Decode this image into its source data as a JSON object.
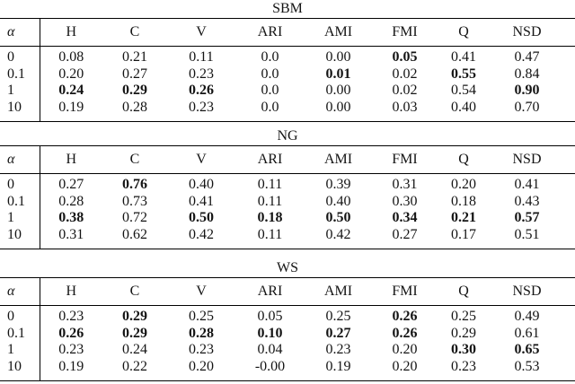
{
  "colors": {
    "background": "#ffffff",
    "text": "#141414",
    "rule": "#000000"
  },
  "columns": [
    "α",
    "H",
    "C",
    "V",
    "ARI",
    "AMI",
    "FMI",
    "Q",
    "NSD"
  ],
  "tables": [
    {
      "title": "SBM",
      "rows": [
        {
          "alpha": "0",
          "values": [
            "0.08",
            "0.21",
            "0.11",
            "0.0",
            "0.00",
            "0.05",
            "0.41",
            "0.47"
          ],
          "bold": [
            false,
            false,
            false,
            false,
            false,
            true,
            false,
            false
          ]
        },
        {
          "alpha": "0.1",
          "values": [
            "0.20",
            "0.27",
            "0.23",
            "0.0",
            "0.01",
            "0.02",
            "0.55",
            "0.84"
          ],
          "bold": [
            false,
            false,
            false,
            false,
            true,
            false,
            true,
            false
          ]
        },
        {
          "alpha": "1",
          "values": [
            "0.24",
            "0.29",
            "0.26",
            "0.0",
            "0.00",
            "0.02",
            "0.54",
            "0.90"
          ],
          "bold": [
            true,
            true,
            true,
            false,
            false,
            false,
            false,
            true
          ]
        },
        {
          "alpha": "10",
          "values": [
            "0.19",
            "0.28",
            "0.23",
            "0.0",
            "0.00",
            "0.03",
            "0.40",
            "0.70"
          ],
          "bold": [
            false,
            false,
            false,
            false,
            false,
            false,
            false,
            false
          ]
        }
      ]
    },
    {
      "title": "NG",
      "rows": [
        {
          "alpha": "0",
          "values": [
            "0.27",
            "0.76",
            "0.40",
            "0.11",
            "0.39",
            "0.31",
            "0.20",
            "0.41"
          ],
          "bold": [
            false,
            true,
            false,
            false,
            false,
            false,
            false,
            false
          ]
        },
        {
          "alpha": "0.1",
          "values": [
            "0.28",
            "0.73",
            "0.41",
            "0.11",
            "0.40",
            "0.30",
            "0.18",
            "0.43"
          ],
          "bold": [
            false,
            false,
            false,
            false,
            false,
            false,
            false,
            false
          ]
        },
        {
          "alpha": "1",
          "values": [
            "0.38",
            "0.72",
            "0.50",
            "0.18",
            "0.50",
            "0.34",
            "0.21",
            "0.57"
          ],
          "bold": [
            true,
            false,
            true,
            true,
            true,
            true,
            true,
            true
          ]
        },
        {
          "alpha": "10",
          "values": [
            "0.31",
            "0.62",
            "0.42",
            "0.11",
            "0.42",
            "0.27",
            "0.17",
            "0.51"
          ],
          "bold": [
            false,
            false,
            false,
            false,
            false,
            false,
            false,
            false
          ]
        }
      ]
    },
    {
      "title": "WS",
      "rows": [
        {
          "alpha": "0",
          "values": [
            "0.23",
            "0.29",
            "0.25",
            "0.05",
            "0.25",
            "0.26",
            "0.25",
            "0.49"
          ],
          "bold": [
            false,
            true,
            false,
            false,
            false,
            true,
            false,
            false
          ]
        },
        {
          "alpha": "0.1",
          "values": [
            "0.26",
            "0.29",
            "0.28",
            "0.10",
            "0.27",
            "0.26",
            "0.29",
            "0.61"
          ],
          "bold": [
            true,
            true,
            true,
            true,
            true,
            true,
            false,
            false
          ]
        },
        {
          "alpha": "1",
          "values": [
            "0.23",
            "0.24",
            "0.23",
            "0.04",
            "0.23",
            "0.20",
            "0.30",
            "0.65"
          ],
          "bold": [
            false,
            false,
            false,
            false,
            false,
            false,
            true,
            true
          ]
        },
        {
          "alpha": "10",
          "values": [
            "0.19",
            "0.22",
            "0.20",
            "-0.00",
            "0.19",
            "0.20",
            "0.23",
            "0.53"
          ],
          "bold": [
            false,
            false,
            false,
            false,
            false,
            false,
            false,
            false
          ]
        }
      ]
    }
  ]
}
